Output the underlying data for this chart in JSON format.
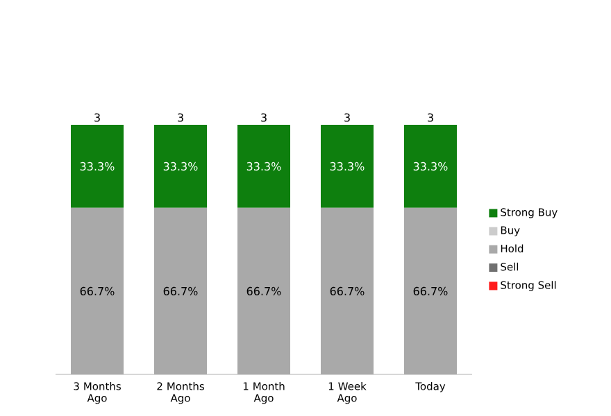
{
  "chart_data": {
    "type": "bar",
    "stacked": true,
    "legend": "right",
    "categories": [
      "3 Months Ago",
      "2 Months Ago",
      "1 Month Ago",
      "1 Week Ago",
      "Today"
    ],
    "series": [
      {
        "name": "Strong Sell",
        "color": "#ff1a1a",
        "values": [
          null,
          null,
          null,
          null,
          null
        ]
      },
      {
        "name": "Sell",
        "color": "#707070",
        "values": [
          null,
          null,
          null,
          null,
          null
        ]
      },
      {
        "name": "Hold",
        "color": "#a9a9a9",
        "values": [
          66.7,
          66.7,
          66.7,
          66.7,
          66.7
        ],
        "value_labels": [
          "66.7%",
          "66.7%",
          "66.7%",
          "66.7%",
          "66.7%"
        ]
      },
      {
        "name": "Buy",
        "color": "#cccccc",
        "values": [
          null,
          null,
          null,
          null,
          null
        ]
      },
      {
        "name": "Strong Buy",
        "color": "#0e7f0e",
        "values": [
          33.3,
          33.3,
          33.3,
          33.3,
          33.3
        ],
        "value_labels": [
          "33.3%",
          "33.3%",
          "33.3%",
          "33.3%",
          "33.3%"
        ]
      }
    ],
    "annotations": [
      {
        "text": "3",
        "x": "3 Months Ago",
        "y": 100
      },
      {
        "text": "3",
        "x": "2 Months Ago",
        "y": 100
      },
      {
        "text": "3",
        "x": "1 Month Ago",
        "y": 100
      },
      {
        "text": "3",
        "x": "1 Week Ago",
        "y": 100
      },
      {
        "text": "3",
        "x": "Today",
        "y": 100
      }
    ]
  }
}
